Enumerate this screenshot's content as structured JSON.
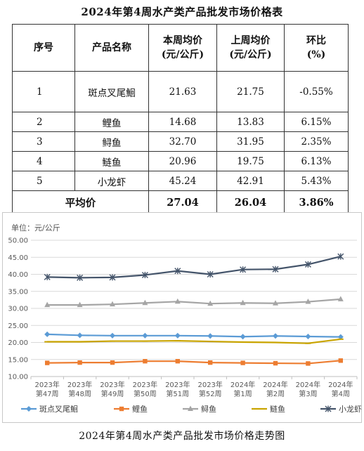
{
  "table": {
    "title": "2024年第4周水产类产品批发市场价格表",
    "headers": {
      "seq": "序号",
      "name": "产品名称",
      "this_week_1": "本周均价",
      "this_week_2": "(元/公斤)",
      "last_week_1": "上周均价",
      "last_week_2": "(元/公斤)",
      "change_1": "环比",
      "change_2": "(%)"
    },
    "rows": [
      {
        "seq": "1",
        "name": "斑点叉尾鮰",
        "this_week": "21.63",
        "last_week": "21.75",
        "change": "-0.55%"
      },
      {
        "seq": "2",
        "name": "鲤鱼",
        "this_week": "14.68",
        "last_week": "13.83",
        "change": "6.15%"
      },
      {
        "seq": "3",
        "name": "鲟鱼",
        "this_week": "32.70",
        "last_week": "31.95",
        "change": "2.35%"
      },
      {
        "seq": "4",
        "name": "鲢鱼",
        "this_week": "20.96",
        "last_week": "19.75",
        "change": "6.13%"
      },
      {
        "seq": "5",
        "name": "小龙虾",
        "this_week": "45.24",
        "last_week": "42.91",
        "change": "5.43%"
      }
    ],
    "average": {
      "label": "平均价",
      "this_week": "27.04",
      "last_week": "26.04",
      "change": "3.86%"
    }
  },
  "chart_caption": "2024年第4周水产类产品批发市场价格走势图",
  "chart_data": {
    "type": "line",
    "unit_label": "单位：元/公斤",
    "categories": [
      [
        "2023年",
        "第47周"
      ],
      [
        "2023年",
        "第48周"
      ],
      [
        "2023年",
        "第49周"
      ],
      [
        "2023年",
        "第50周"
      ],
      [
        "2023年",
        "第51周"
      ],
      [
        "2023年",
        "第52周"
      ],
      [
        "2024年",
        "第1周"
      ],
      [
        "2024年",
        "第2周"
      ],
      [
        "2024年",
        "第3周"
      ],
      [
        "2024年",
        "第4周"
      ]
    ],
    "ylim": [
      10,
      50
    ],
    "yticks": [
      "10.00",
      "15.00",
      "20.00",
      "25.00",
      "30.00",
      "35.00",
      "40.00",
      "45.00",
      "50.00"
    ],
    "grid": true,
    "legend_position": "bottom",
    "series": [
      {
        "name": "斑点叉尾鮰",
        "color": "#5b9bd5",
        "marker": "diamond",
        "values": [
          22.4,
          22.1,
          22.0,
          22.0,
          22.0,
          21.9,
          21.7,
          21.9,
          21.75,
          21.63
        ]
      },
      {
        "name": "鲤鱼",
        "color": "#ed7d31",
        "marker": "square",
        "values": [
          14.0,
          14.1,
          14.1,
          14.5,
          14.5,
          14.1,
          14.0,
          13.9,
          13.83,
          14.68
        ]
      },
      {
        "name": "鲟鱼",
        "color": "#a5a5a5",
        "marker": "triangle",
        "values": [
          31.0,
          31.0,
          31.2,
          31.6,
          32.0,
          31.4,
          31.6,
          31.5,
          31.95,
          32.7
        ]
      },
      {
        "name": "鲢鱼",
        "color": "#c9a400",
        "marker": "line",
        "values": [
          20.2,
          20.2,
          20.4,
          20.4,
          20.5,
          20.3,
          20.1,
          20.0,
          19.75,
          20.96
        ]
      },
      {
        "name": "小龙虾",
        "color": "#44546a",
        "marker": "star",
        "values": [
          39.2,
          39.0,
          39.1,
          39.8,
          41.0,
          40.0,
          41.4,
          41.5,
          42.91,
          45.24
        ]
      }
    ]
  }
}
